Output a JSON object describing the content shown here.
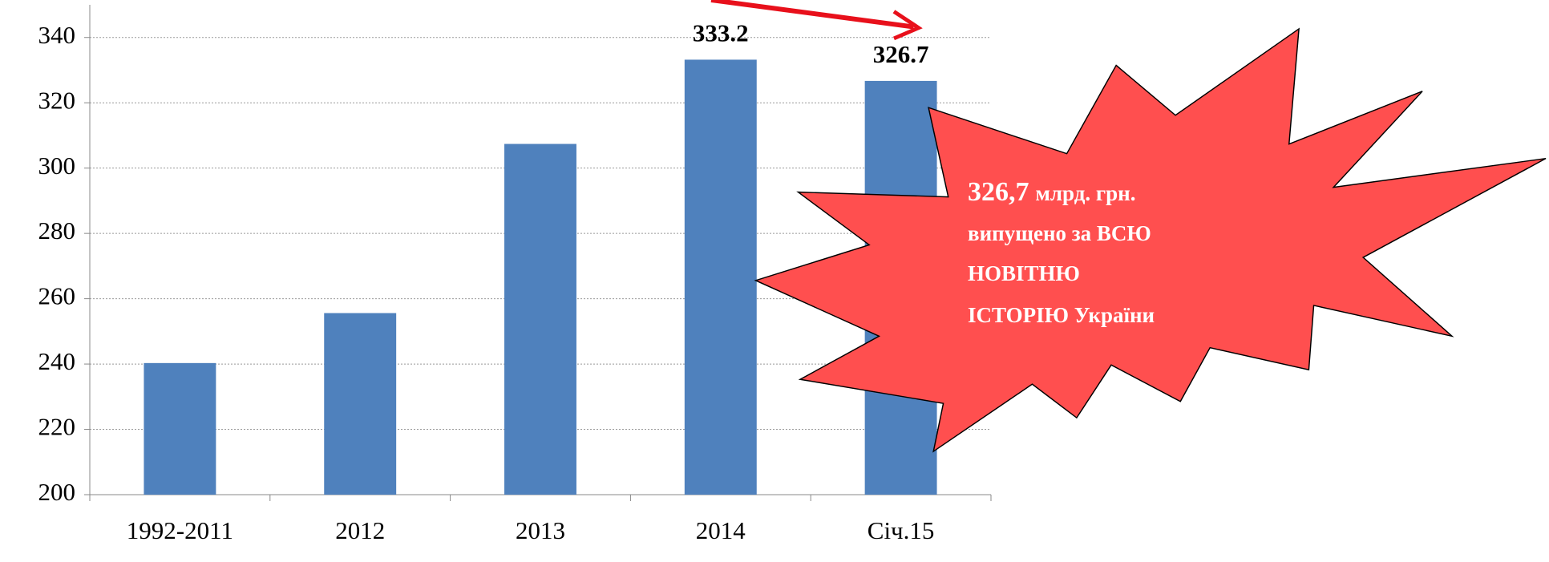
{
  "chart_data": {
    "type": "bar",
    "categories": [
      "1992-2011",
      "2012",
      "2013",
      "2014",
      "Січ.15"
    ],
    "values": [
      240.3,
      255.6,
      307.4,
      333.2,
      326.7
    ],
    "value_labels": [
      null,
      null,
      null,
      "333.2",
      "326.7"
    ],
    "color": "#4f81bd",
    "ylim": [
      200,
      350
    ],
    "yticks": [
      200,
      220,
      240,
      260,
      280,
      300,
      320,
      340
    ],
    "grid": true
  },
  "callout": {
    "lead": "326,7",
    "lines": [
      "млрд. грн.",
      "випущено за ВСЮ",
      "НОВІТНЮ",
      "ІСТОРІЮ України"
    ]
  }
}
